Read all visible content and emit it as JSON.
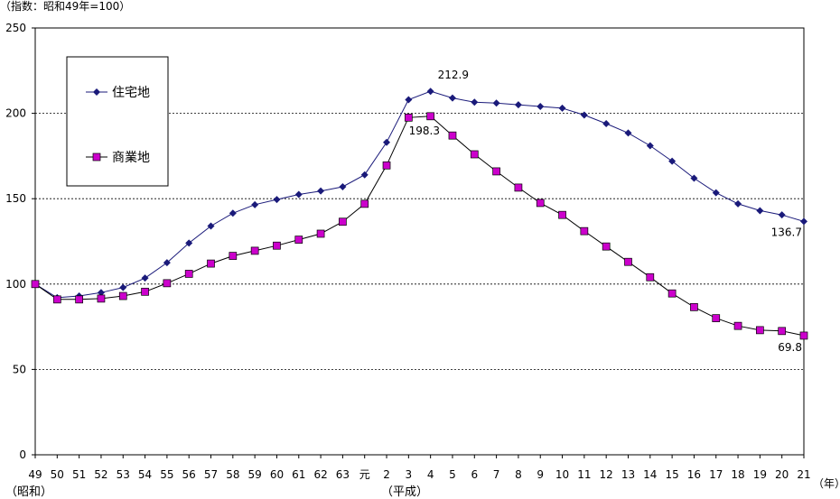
{
  "chart_data": {
    "type": "line",
    "unit_note": "（指数：昭和49年=100）",
    "x_unit": "（年）",
    "era_labels": [
      "（昭和）",
      "（平成）"
    ],
    "categories": [
      "49",
      "50",
      "51",
      "52",
      "53",
      "54",
      "55",
      "56",
      "57",
      "58",
      "59",
      "60",
      "61",
      "62",
      "63",
      "元",
      "2",
      "3",
      "4",
      "5",
      "6",
      "7",
      "8",
      "9",
      "10",
      "11",
      "12",
      "13",
      "14",
      "15",
      "16",
      "17",
      "18",
      "19",
      "20",
      "21"
    ],
    "ylim": [
      0,
      250
    ],
    "yticks": [
      0,
      50,
      100,
      150,
      200,
      250
    ],
    "grid": "horizontal dashed at 50, 100, 150, 200",
    "legend_position": "top-left",
    "series": [
      {
        "name": "住宅地",
        "color": "#1a1a7a",
        "marker": "diamond",
        "values": [
          100,
          92,
          93,
          95,
          98,
          103.5,
          112.5,
          124,
          134,
          141.5,
          146.5,
          149.5,
          152.5,
          154.5,
          157,
          164,
          183,
          208,
          212.9,
          209,
          206.5,
          206,
          205,
          204,
          203,
          199,
          194,
          188.5,
          181,
          172,
          162,
          153.5,
          147,
          143,
          140.5,
          136.7
        ]
      },
      {
        "name": "商業地",
        "color": "#cc00cc",
        "marker": "square",
        "values": [
          100,
          91,
          91,
          91.5,
          93,
          95.5,
          100.5,
          106,
          112,
          116.5,
          119.5,
          122.5,
          126,
          129.5,
          136.5,
          147,
          169.5,
          197.5,
          198.3,
          187,
          176,
          166,
          156.5,
          147.5,
          140.5,
          131,
          122,
          113,
          104,
          94.5,
          86.5,
          80,
          75.5,
          73,
          72.5,
          69.8
        ]
      }
    ],
    "annotations": [
      "212.9",
      "198.3",
      "136.7",
      "69.8"
    ]
  }
}
